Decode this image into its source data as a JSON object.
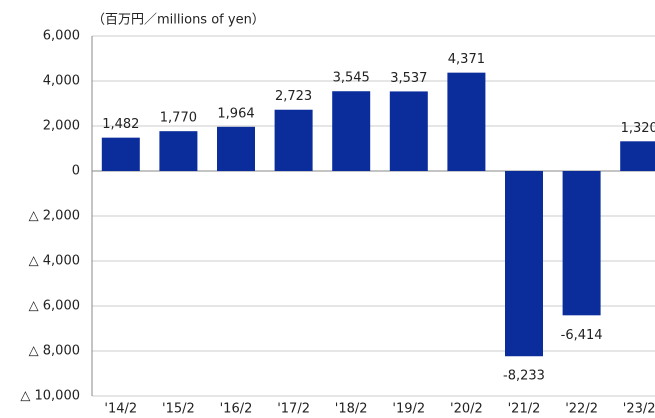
{
  "chart_data": {
    "type": "bar",
    "unit_label": "（百万円／millions of yen）",
    "categories": [
      "'14/2",
      "'15/2",
      "'16/2",
      "'17/2",
      "'18/2",
      "'19/2",
      "'20/2",
      "'21/2",
      "'22/2",
      "'23/2"
    ],
    "values": [
      1482,
      1770,
      1964,
      2723,
      3545,
      3537,
      4371,
      -8233,
      -6414,
      1320
    ],
    "value_labels": [
      "1,482",
      "1,770",
      "1,964",
      "2,723",
      "3,545",
      "3,537",
      "4,371",
      "-8,233",
      "-6,414",
      "1,320"
    ],
    "color": "#0b2d9c",
    "ylim": [
      -10000,
      6000
    ],
    "yticks": [
      {
        "value": 6000,
        "label": "6,000"
      },
      {
        "value": 4000,
        "label": "4,000"
      },
      {
        "value": 2000,
        "label": "2,000"
      },
      0,
      {
        "value": -2000,
        "label": "△ 2,000"
      },
      {
        "value": -4000,
        "label": "△ 4,000"
      },
      {
        "value": -6000,
        "label": "△ 6,000"
      },
      {
        "value": -8000,
        "label": "△ 8,000"
      },
      {
        "value": -10000,
        "label": "△ 10,000"
      }
    ],
    "grid": true
  }
}
